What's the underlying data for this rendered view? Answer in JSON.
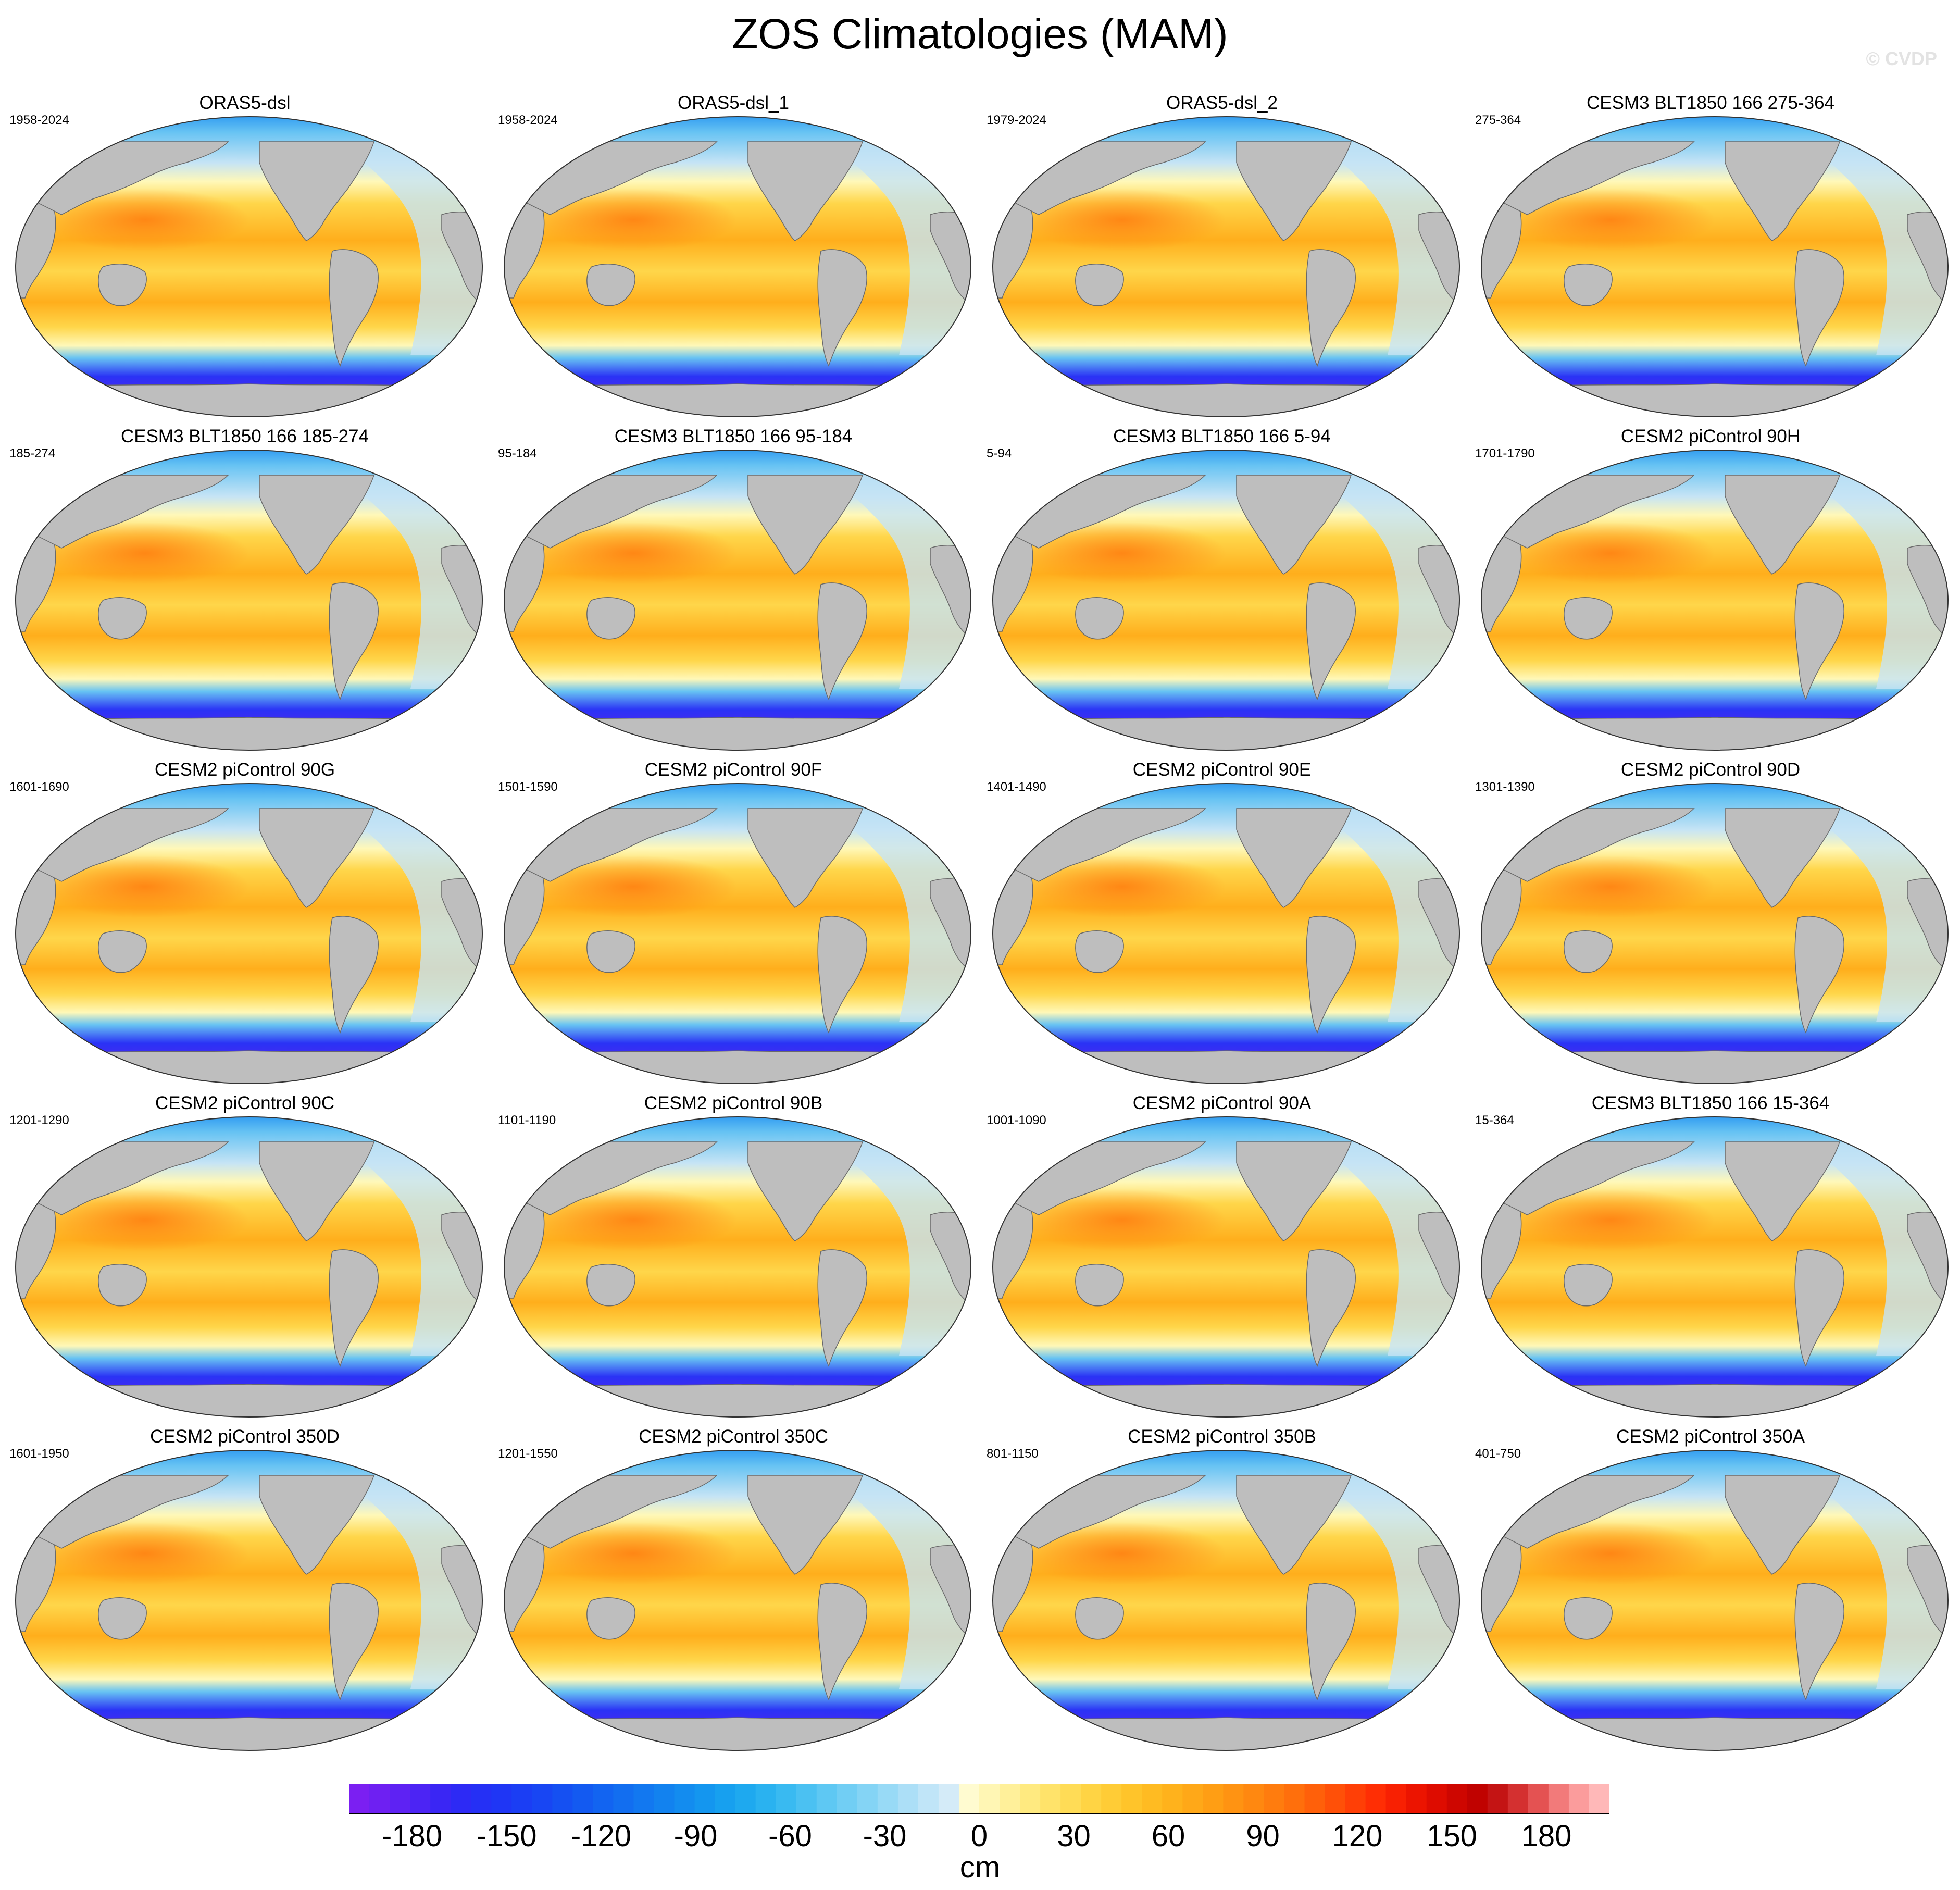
{
  "figure": {
    "title": "ZOS Climatologies (MAM)",
    "watermark": "© CVDP"
  },
  "colors": {
    "land": "#bebebe",
    "coast": "#6a6a6a",
    "ocean_stops": [
      "#7a1cf0",
      "#2a32f5",
      "#1f8ff0",
      "#67c3f3",
      "#c6e4f5",
      "#fff8b8",
      "#ffd64a",
      "#ffae1c",
      "#ff7c0f"
    ]
  },
  "panels": [
    {
      "title": "ORAS5-dsl",
      "years": "1958-2024"
    },
    {
      "title": "ORAS5-dsl_1",
      "years": "1958-2024"
    },
    {
      "title": "ORAS5-dsl_2",
      "years": "1979-2024"
    },
    {
      "title": "CESM3 BLT1850 166 275-364",
      "years": "275-364"
    },
    {
      "title": "CESM3 BLT1850 166 185-274",
      "years": "185-274"
    },
    {
      "title": "CESM3 BLT1850 166 95-184",
      "years": "95-184"
    },
    {
      "title": "CESM3 BLT1850 166 5-94",
      "years": "5-94"
    },
    {
      "title": "CESM2 piControl 90H",
      "years": "1701-1790"
    },
    {
      "title": "CESM2 piControl 90G",
      "years": "1601-1690"
    },
    {
      "title": "CESM2 piControl 90F",
      "years": "1501-1590"
    },
    {
      "title": "CESM2 piControl 90E",
      "years": "1401-1490"
    },
    {
      "title": "CESM2 piControl 90D",
      "years": "1301-1390"
    },
    {
      "title": "CESM2 piControl 90C",
      "years": "1201-1290"
    },
    {
      "title": "CESM2 piControl 90B",
      "years": "1101-1190"
    },
    {
      "title": "CESM2 piControl 90A",
      "years": "1001-1090"
    },
    {
      "title": "CESM3 BLT1850 166 15-364",
      "years": "15-364"
    },
    {
      "title": "CESM2 piControl 350D",
      "years": "1601-1950"
    },
    {
      "title": "CESM2 piControl 350C",
      "years": "1201-1550"
    },
    {
      "title": "CESM2 piControl 350B",
      "years": "801-1150"
    },
    {
      "title": "CESM2 piControl 350A",
      "years": "401-750"
    }
  ],
  "colorbar": {
    "unit": "cm",
    "min": -200,
    "max": 200,
    "tick_values": [
      -180,
      -150,
      -120,
      -90,
      -60,
      -30,
      0,
      30,
      60,
      90,
      120,
      150,
      180
    ],
    "tick_labels": [
      "-180",
      "-150",
      "-120",
      "-90",
      "-60",
      "-30",
      "0",
      "30",
      "60",
      "90",
      "120",
      "150",
      "180"
    ],
    "swatches": [
      "#7b1ff2",
      "#6e20f2",
      "#5e22f3",
      "#4c24f4",
      "#3a26f4",
      "#2d2af5",
      "#2530f5",
      "#1f36f5",
      "#1b3ef4",
      "#1846f3",
      "#1550f2",
      "#135af1",
      "#1264f1",
      "#126ef0",
      "#1278f0",
      "#1282ef",
      "#138cef",
      "#1496ef",
      "#17a0ef",
      "#1ea9ef",
      "#2ab2f0",
      "#39baf1",
      "#4bc1f2",
      "#5ec8f3",
      "#71cef4",
      "#84d4f5",
      "#98daf6",
      "#acdff7",
      "#c0e5f8",
      "#d4ebf8",
      "#fffbd0",
      "#fff6b4",
      "#fff09a",
      "#ffea80",
      "#ffe36a",
      "#ffdc56",
      "#ffd444",
      "#ffcc36",
      "#ffc42a",
      "#ffbb22",
      "#ffb21c",
      "#ffa818",
      "#ff9e14",
      "#ff9312",
      "#ff8810",
      "#ff7c0e",
      "#ff6f0c",
      "#ff600a",
      "#ff5008",
      "#ff3f06",
      "#ff2e04",
      "#f82002",
      "#ec1400",
      "#de0c00",
      "#ce0600",
      "#c00200",
      "#c41414",
      "#d43030",
      "#e45252",
      "#f27a7a",
      "#fb9c9c",
      "#ffb8b8"
    ]
  }
}
